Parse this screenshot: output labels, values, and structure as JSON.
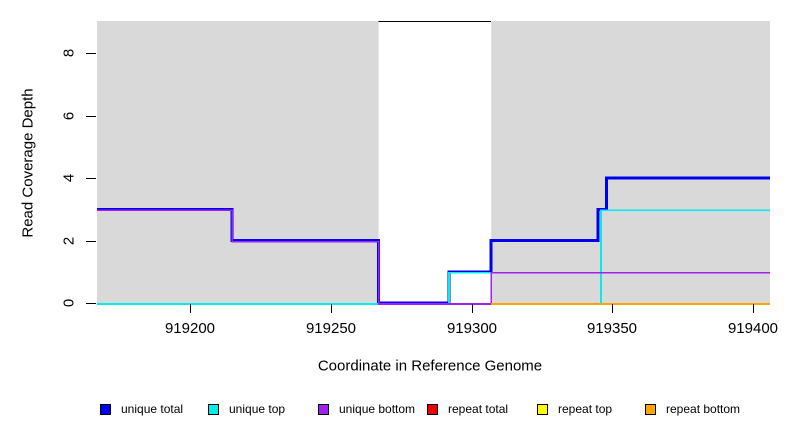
{
  "figure": {
    "background": "#FFFFFF",
    "plot_background": "#D9D9D9"
  },
  "y_axis": {
    "label": "Read Coverage Depth",
    "ticks": [
      "0",
      "2",
      "4",
      "6",
      "8"
    ]
  },
  "x_axis": {
    "label": "Coordinate in Reference Genome",
    "ticks": [
      "919200",
      "919250",
      "919300",
      "919350",
      "919400"
    ]
  },
  "legend": {
    "position": "bottom",
    "items": [
      {
        "label": "unique total",
        "color": "#0000EE"
      },
      {
        "label": "unique top",
        "color": "#00EEEE"
      },
      {
        "label": "unique bottom",
        "color": "#A020F0"
      },
      {
        "label": "repeat total",
        "color": "#EE0000"
      },
      {
        "label": "repeat top",
        "color": "#FFFF00"
      },
      {
        "label": "repeat bottom",
        "color": "#FFA500"
      }
    ]
  },
  "chart_data": {
    "type": "line",
    "subtype": "step",
    "title": "",
    "xlabel": "Coordinate in Reference Genome",
    "ylabel": "Read Coverage Depth",
    "xlim": [
      919167,
      919406
    ],
    "ylim": [
      0,
      9.04
    ],
    "x_ticks": [
      919200,
      919250,
      919300,
      919350,
      919400
    ],
    "y_ticks": [
      0,
      2,
      4,
      6,
      8
    ],
    "grid": false,
    "plot_bg": "#D9D9D9",
    "legend_position": "bottom",
    "highlight_region": {
      "x_from": 919267,
      "x_to": 919307,
      "fill": "#FFFFFF",
      "top_value": 9,
      "top_border_color": "#000000"
    },
    "series": [
      {
        "name": "unique total",
        "color": "#0000EE",
        "line_width": 3,
        "offset_y": 0,
        "steps": [
          {
            "from": 919167,
            "to": 919215,
            "value": 3
          },
          {
            "from": 919215,
            "to": 919267,
            "value": 2
          },
          {
            "from": 919267,
            "to": 919292,
            "value": 0
          },
          {
            "from": 919292,
            "to": 919307,
            "value": 1
          },
          {
            "from": 919307,
            "to": 919345,
            "value": 2
          },
          {
            "from": 919345,
            "to": 919348,
            "value": 3
          },
          {
            "from": 919348,
            "to": 919406,
            "value": 4
          }
        ]
      },
      {
        "name": "unique top",
        "color": "#00EEEE",
        "line_width": 1.6,
        "offset_y": 1,
        "steps": [
          {
            "from": 919167,
            "to": 919292,
            "value": 0
          },
          {
            "from": 919292,
            "to": 919307,
            "value": 1
          },
          {
            "from": 919307,
            "to": 919346,
            "value": 0
          },
          {
            "from": 919346,
            "to": 919406,
            "value": 3
          }
        ]
      },
      {
        "name": "unique bottom",
        "color": "#A020F0",
        "line_width": 1.6,
        "offset_y": 1,
        "steps": [
          {
            "from": 919167,
            "to": 919215,
            "value": 3
          },
          {
            "from": 919215,
            "to": 919267,
            "value": 2
          },
          {
            "from": 919267,
            "to": 919307,
            "value": 0
          },
          {
            "from": 919307,
            "to": 919406,
            "value": 1
          }
        ]
      },
      {
        "name": "repeat total",
        "color": "#EE0000",
        "line_width": 1.6,
        "offset_y": 1,
        "steps": [
          {
            "from": 919307,
            "to": 919406,
            "value": 0
          }
        ]
      },
      {
        "name": "repeat top",
        "color": "#FFFF00",
        "line_width": 1.6,
        "offset_y": 1,
        "steps": [
          {
            "from": 919307,
            "to": 919406,
            "value": 0
          }
        ]
      },
      {
        "name": "repeat bottom",
        "color": "#FFA500",
        "line_width": 1.6,
        "offset_y": 1,
        "steps": [
          {
            "from": 919307,
            "to": 919406,
            "value": 0
          }
        ]
      }
    ]
  }
}
